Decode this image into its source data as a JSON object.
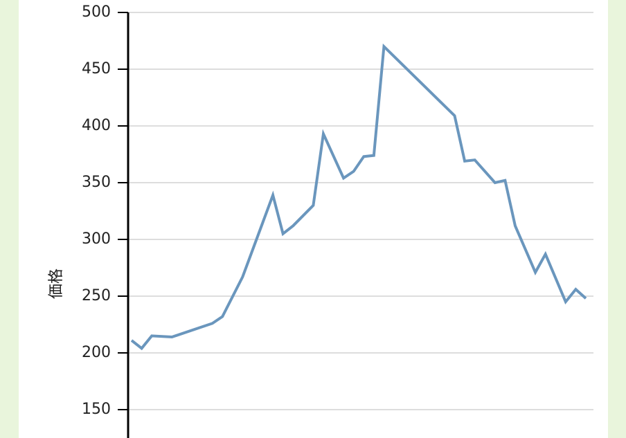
{
  "chart_data": {
    "type": "line",
    "y_label": "価格",
    "x": [
      0,
      1,
      2,
      4,
      7,
      8,
      9,
      11,
      14,
      15,
      16,
      18,
      19,
      21,
      22,
      23,
      24,
      25,
      32,
      33,
      34,
      36,
      37,
      38,
      40,
      41,
      43,
      44,
      45
    ],
    "xlim": [
      0,
      45
    ],
    "series": [
      {
        "color": "#6a96bd",
        "values": [
          211,
          204,
          215,
          214,
          223,
          226,
          232,
          267,
          339,
          305,
          312,
          330,
          393,
          354,
          360,
          373,
          374,
          470,
          409,
          369,
          370,
          350,
          352,
          312,
          271,
          287,
          245,
          256,
          248
        ]
      }
    ],
    "ylim": [
      125,
      500
    ],
    "yticks": [
      150,
      200,
      250,
      300,
      350,
      400,
      450,
      500
    ],
    "grid": true
  }
}
